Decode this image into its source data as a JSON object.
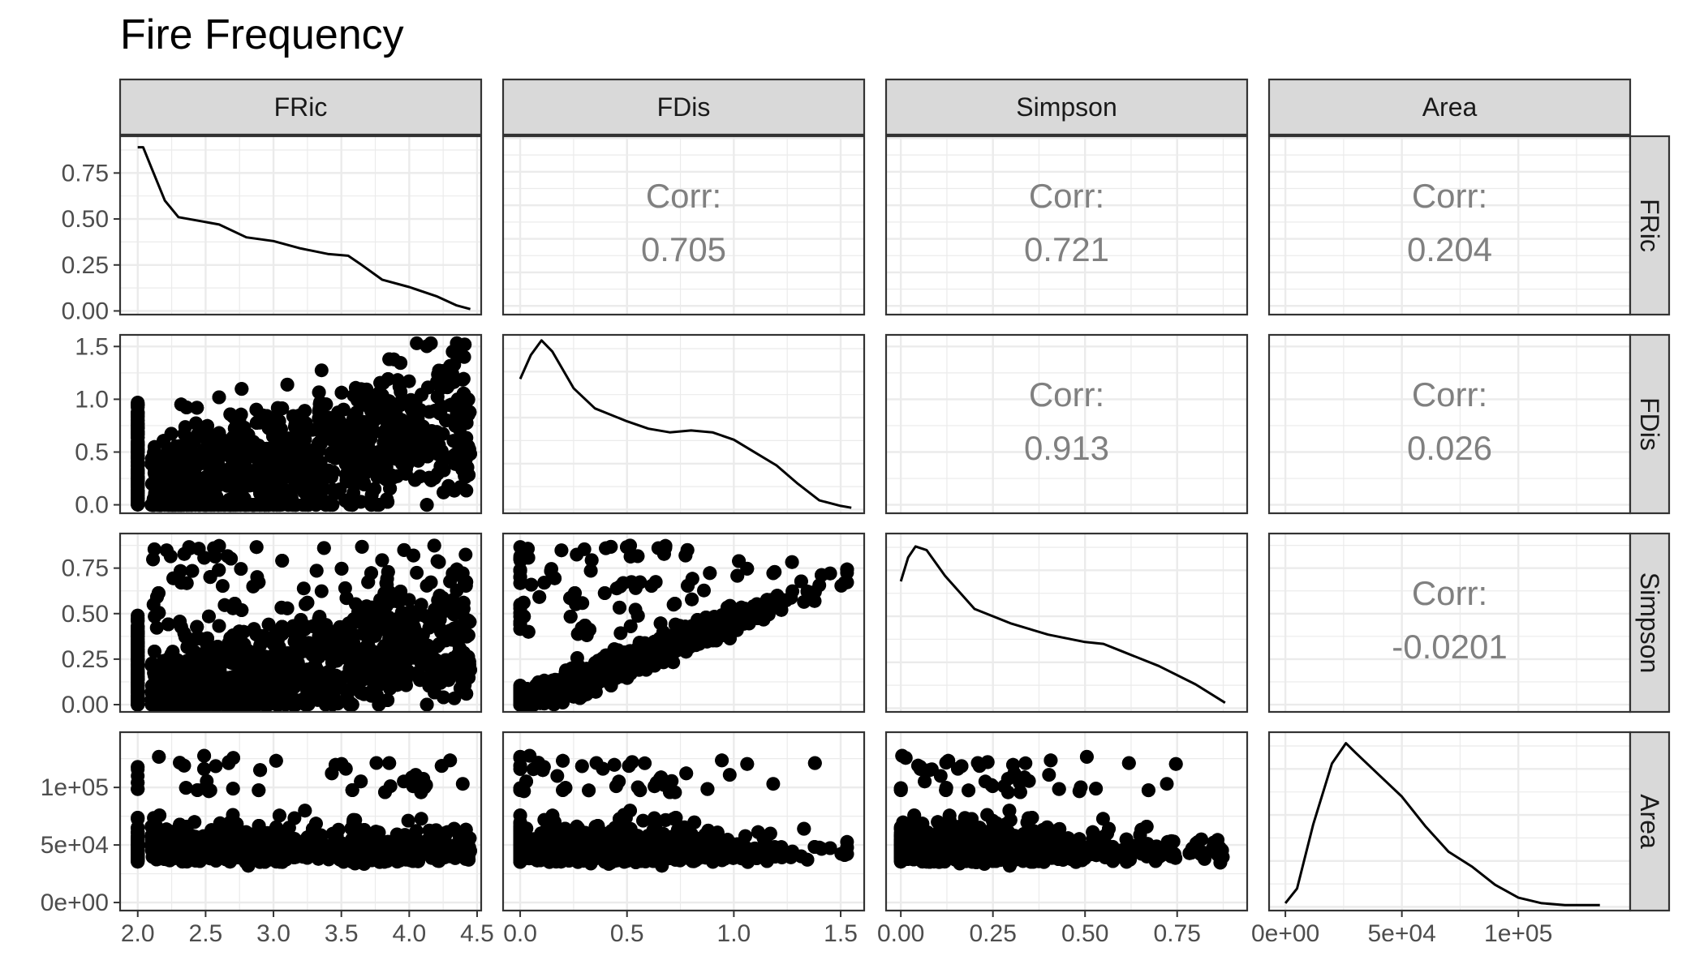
{
  "chart_data": {
    "type": "scatter",
    "title": "Fire Frequency",
    "variables": [
      "FRic",
      "FDis",
      "Simpson",
      "Area"
    ],
    "ranges": {
      "FRic": [
        1.87,
        4.53
      ],
      "FDis": [
        -0.08,
        1.61
      ],
      "Simpson": [
        -0.04,
        0.94
      ],
      "Area": [
        -7000,
        148000
      ]
    },
    "ticks": {
      "FRic": {
        "values": [
          2.0,
          2.5,
          3.0,
          3.5,
          4.0,
          4.5
        ],
        "labels": [
          "2.0",
          "2.5",
          "3.0",
          "3.5",
          "4.0",
          "4.5"
        ]
      },
      "FDis": {
        "values": [
          0.0,
          0.5,
          1.0,
          1.5
        ],
        "labels": [
          "0.0",
          "0.5",
          "1.0",
          "1.5"
        ]
      },
      "Simpson": {
        "values": [
          0.0,
          0.25,
          0.5,
          0.75
        ],
        "labels": [
          "0.00",
          "0.25",
          "0.50",
          "0.75"
        ]
      },
      "Area": {
        "values": [
          0,
          50000,
          100000
        ],
        "labels": [
          "0e+00",
          "5e+04",
          "1e+05"
        ]
      }
    },
    "density_axis": {
      "range": [
        -0.02,
        0.95
      ],
      "ticks": [
        0.0,
        0.25,
        0.5,
        0.75
      ],
      "labels": [
        "0.00",
        "0.25",
        "0.50",
        "0.75"
      ]
    },
    "correlations": {
      "label": "Corr:",
      "FDis_FRic": "0.705",
      "Simpson_FRic": "0.721",
      "Area_FRic": "0.204",
      "Simpson_FDis": "0.913",
      "Area_FDis": "0.026",
      "Area_Simpson": "-0.0201"
    },
    "densities": {
      "FRic": [
        [
          2.0,
          0.89
        ],
        [
          2.04,
          0.89
        ],
        [
          2.1,
          0.78
        ],
        [
          2.2,
          0.6
        ],
        [
          2.3,
          0.51
        ],
        [
          2.45,
          0.49
        ],
        [
          2.6,
          0.47
        ],
        [
          2.8,
          0.4
        ],
        [
          3.0,
          0.38
        ],
        [
          3.2,
          0.34
        ],
        [
          3.4,
          0.31
        ],
        [
          3.55,
          0.3
        ],
        [
          3.65,
          0.25
        ],
        [
          3.8,
          0.17
        ],
        [
          4.0,
          0.13
        ],
        [
          4.2,
          0.08
        ],
        [
          4.35,
          0.03
        ],
        [
          4.45,
          0.01
        ]
      ],
      "FDis": [
        [
          0.0,
          0.71
        ],
        [
          0.05,
          0.84
        ],
        [
          0.1,
          0.92
        ],
        [
          0.15,
          0.86
        ],
        [
          0.25,
          0.66
        ],
        [
          0.35,
          0.55
        ],
        [
          0.5,
          0.48
        ],
        [
          0.6,
          0.44
        ],
        [
          0.7,
          0.42
        ],
        [
          0.8,
          0.43
        ],
        [
          0.9,
          0.42
        ],
        [
          1.0,
          0.38
        ],
        [
          1.1,
          0.31
        ],
        [
          1.2,
          0.24
        ],
        [
          1.3,
          0.14
        ],
        [
          1.4,
          0.05
        ],
        [
          1.5,
          0.02
        ],
        [
          1.55,
          0.01
        ]
      ],
      "Simpson": [
        [
          0.0,
          0.69
        ],
        [
          0.02,
          0.82
        ],
        [
          0.04,
          0.88
        ],
        [
          0.07,
          0.86
        ],
        [
          0.12,
          0.72
        ],
        [
          0.2,
          0.54
        ],
        [
          0.3,
          0.46
        ],
        [
          0.4,
          0.4
        ],
        [
          0.5,
          0.36
        ],
        [
          0.55,
          0.35
        ],
        [
          0.6,
          0.31
        ],
        [
          0.7,
          0.23
        ],
        [
          0.8,
          0.13
        ],
        [
          0.88,
          0.03
        ]
      ],
      "Area": [
        [
          0,
          0.02
        ],
        [
          5000,
          0.1
        ],
        [
          12000,
          0.45
        ],
        [
          20000,
          0.78
        ],
        [
          26000,
          0.89
        ],
        [
          30000,
          0.84
        ],
        [
          40000,
          0.72
        ],
        [
          50000,
          0.6
        ],
        [
          60000,
          0.44
        ],
        [
          70000,
          0.3
        ],
        [
          80000,
          0.22
        ],
        [
          90000,
          0.12
        ],
        [
          100000,
          0.05
        ],
        [
          110000,
          0.02
        ],
        [
          120000,
          0.01
        ],
        [
          135000,
          0.01
        ]
      ]
    },
    "scatter_n": 2200,
    "grid": true,
    "legend": "none"
  }
}
